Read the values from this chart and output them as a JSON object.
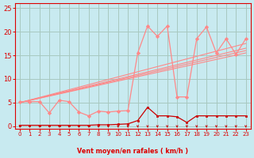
{
  "bg_color": "#c8eaf0",
  "grid_color": "#a8c8c0",
  "text_color": "#dd0000",
  "xlabel": "Vent moyen/en rafales ( km/h )",
  "xlim": [
    -0.5,
    23.5
  ],
  "ylim": [
    -0.5,
    26
  ],
  "xticks": [
    0,
    1,
    2,
    3,
    4,
    5,
    6,
    7,
    8,
    9,
    10,
    11,
    12,
    13,
    14,
    15,
    16,
    17,
    18,
    19,
    20,
    21,
    22,
    23
  ],
  "yticks": [
    0,
    5,
    10,
    15,
    20,
    25
  ],
  "gust_x": [
    0,
    1,
    2,
    3,
    4,
    5,
    6,
    7,
    8,
    9,
    10,
    11,
    12,
    13,
    14,
    15,
    16,
    17,
    18,
    19,
    20,
    21,
    22,
    23
  ],
  "gust_y": [
    5.2,
    5.2,
    5.2,
    2.8,
    5.5,
    5.2,
    3.0,
    2.2,
    3.2,
    3.0,
    3.2,
    3.3,
    15.5,
    21.2,
    19.0,
    21.2,
    6.2,
    6.2,
    18.5,
    21.0,
    15.5,
    18.5,
    15.2,
    18.5
  ],
  "mean_x": [
    0,
    1,
    2,
    3,
    4,
    5,
    6,
    7,
    8,
    9,
    10,
    11,
    12,
    13,
    14,
    15,
    16,
    17,
    18,
    19,
    20,
    21,
    22,
    23
  ],
  "mean_y": [
    0.2,
    0.2,
    0.2,
    0.2,
    0.2,
    0.2,
    0.2,
    0.2,
    0.3,
    0.3,
    0.4,
    0.5,
    1.2,
    4.0,
    2.2,
    2.2,
    2.0,
    0.8,
    2.2,
    2.2,
    2.2,
    2.2,
    2.2,
    2.2
  ],
  "reg_lines": [
    [
      0.0,
      5.0,
      23.0,
      17.5
    ],
    [
      0.0,
      5.0,
      23.0,
      16.5
    ],
    [
      0.0,
      5.0,
      23.0,
      16.0
    ],
    [
      0.0,
      5.0,
      23.0,
      15.5
    ]
  ],
  "dark_red": "#cc0000",
  "light_red": "#ff8888",
  "marker_size": 3.5,
  "lw_data": 0.9,
  "lw_reg": 0.8
}
